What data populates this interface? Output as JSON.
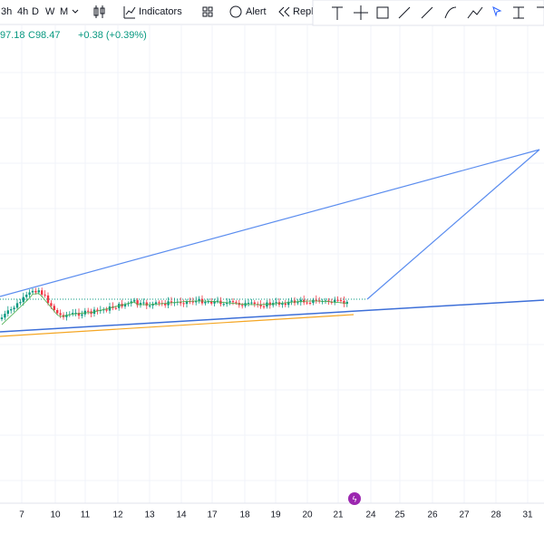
{
  "toolbar": {
    "intervals": [
      "3h",
      "4h",
      "D",
      "W",
      "M"
    ],
    "indicators": "Indicators",
    "alert": "Alert",
    "replay": "Repla"
  },
  "legend": {
    "low": "97.18",
    "close": "C98.47",
    "change": "+0.38 (+0.39%)"
  },
  "x_axis": {
    "labels": [
      "7",
      "10",
      "11",
      "12",
      "13",
      "14",
      "17",
      "18",
      "19",
      "20",
      "21",
      "24",
      "25",
      "26",
      "27",
      "28",
      "31"
    ]
  }
}
